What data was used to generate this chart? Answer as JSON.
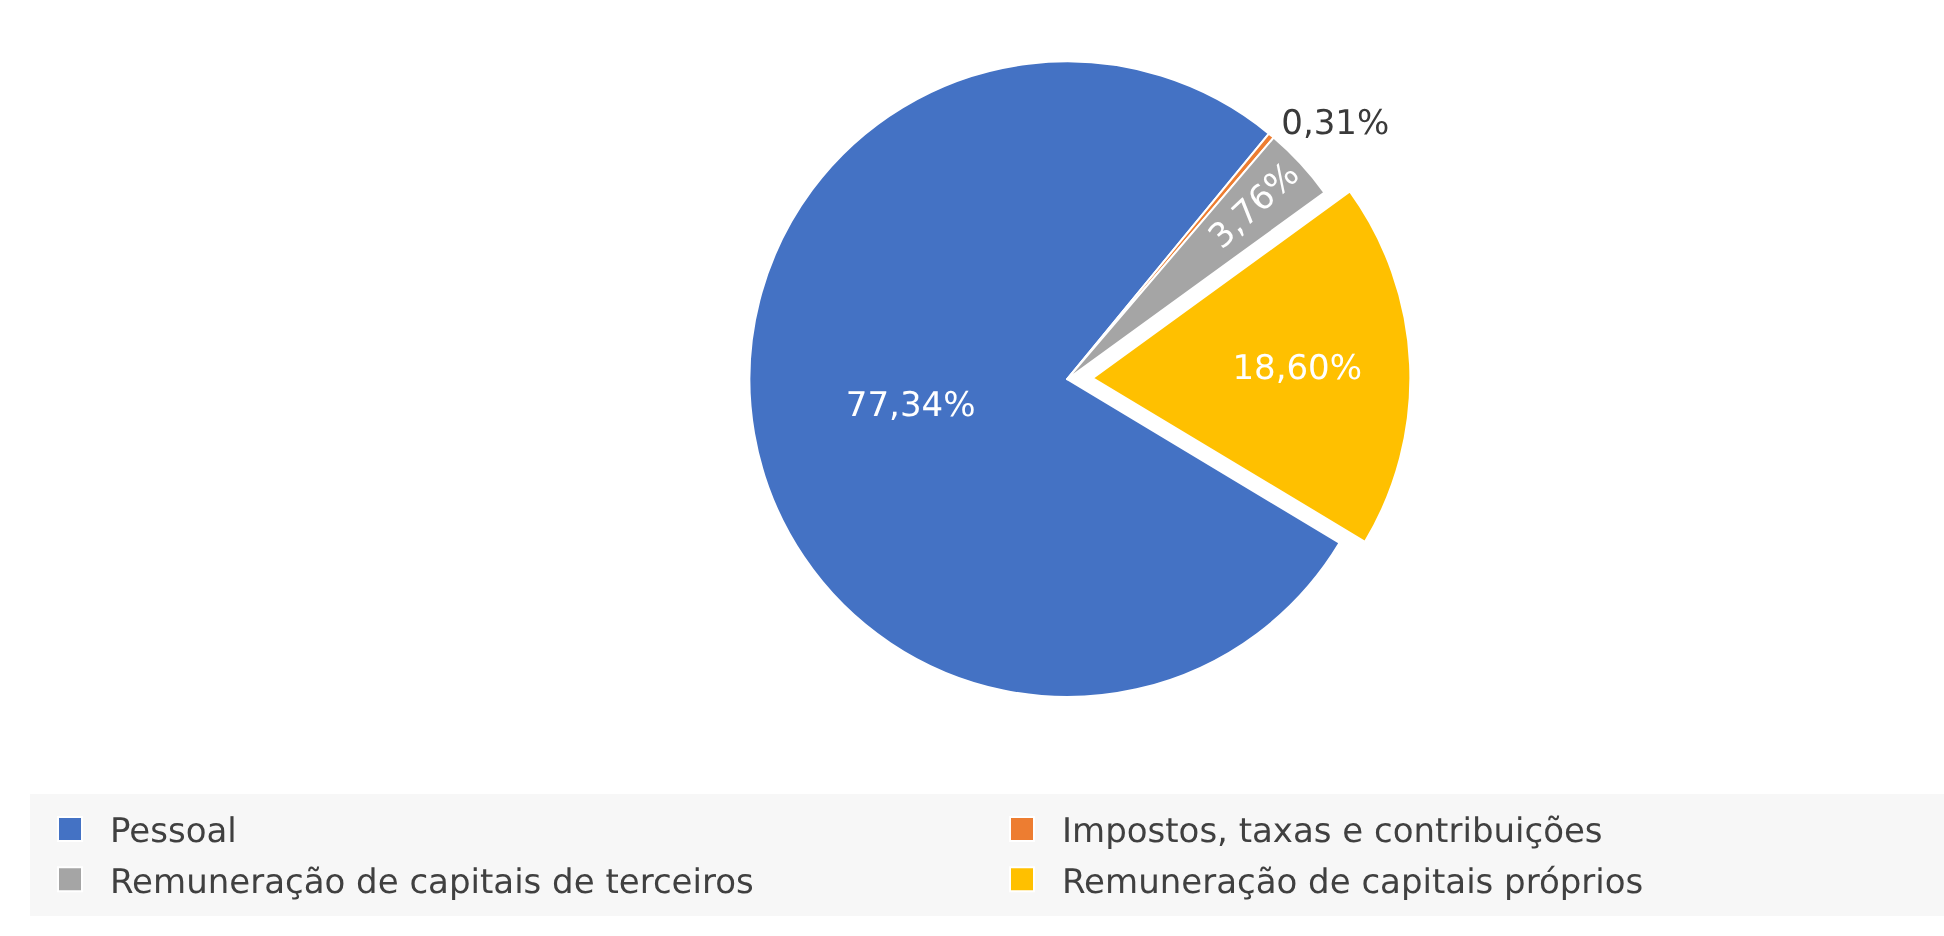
{
  "chart_data": {
    "type": "pie",
    "categories": [
      "Pessoal",
      "Impostos, taxas e contribuições",
      "Remuneração de capitais de terceiros",
      "Remuneração de capitais próprios"
    ],
    "values": [
      77.34,
      0.31,
      3.76,
      18.6
    ],
    "colors": [
      "#4472c4",
      "#ed7d31",
      "#a5a5a5",
      "#ffc000"
    ],
    "value_labels": [
      "77,34%",
      "0,31%",
      "3,76%",
      "18,60%"
    ],
    "legend": "bottom"
  }
}
